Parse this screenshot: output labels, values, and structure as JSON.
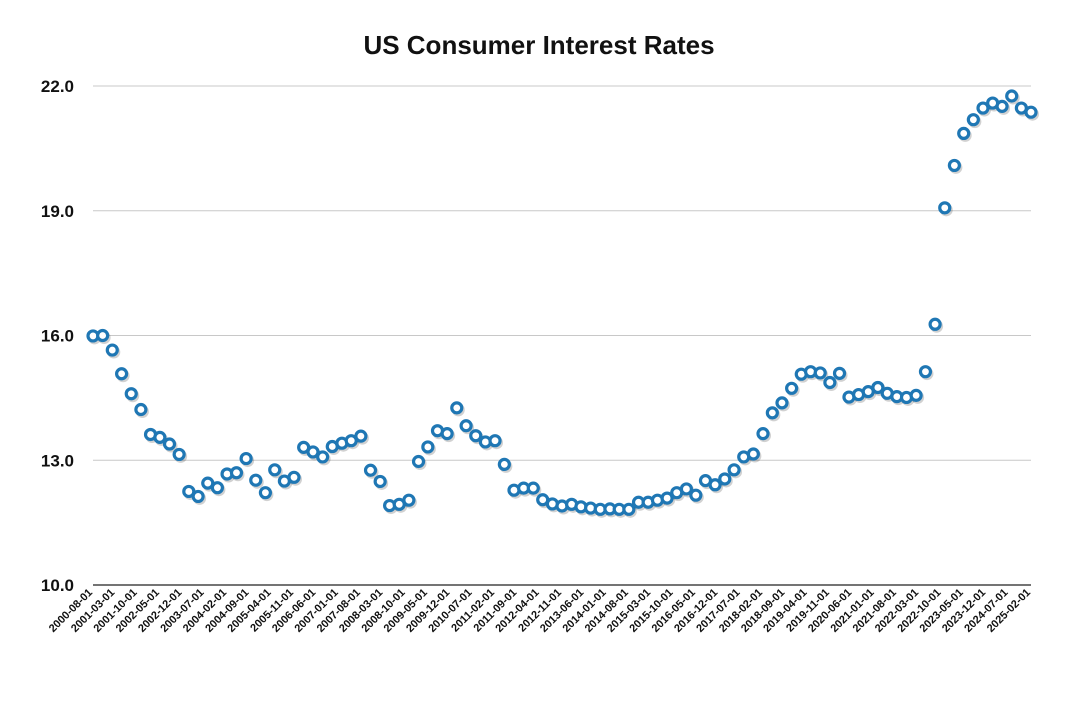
{
  "chart_data": {
    "type": "scatter",
    "title": "US Consumer Interest Rates",
    "xlabel": "",
    "ylabel": "",
    "ylim": [
      10.0,
      22.0
    ],
    "yticks": [
      "10.0",
      "13.0",
      "16.0",
      "19.0",
      "22.0"
    ],
    "grid": true,
    "marker_color": "#1f77b4",
    "x": [
      "2000-08-01",
      "2000-11-01",
      "2001-02-01",
      "2001-05-01",
      "2001-08-01",
      "2001-11-01",
      "2002-02-01",
      "2002-05-01",
      "2002-08-01",
      "2002-11-01",
      "2003-02-01",
      "2003-05-01",
      "2003-08-01",
      "2003-11-01",
      "2004-02-01",
      "2004-05-01",
      "2004-08-01",
      "2004-11-01",
      "2005-02-01",
      "2005-05-01",
      "2005-08-01",
      "2005-11-01",
      "2006-02-01",
      "2006-05-01",
      "2006-08-01",
      "2006-11-01",
      "2007-02-01",
      "2007-05-01",
      "2007-08-01",
      "2007-11-01",
      "2008-02-01",
      "2008-05-01",
      "2008-08-01",
      "2008-11-01",
      "2009-02-01",
      "2009-05-01",
      "2009-08-01",
      "2009-11-01",
      "2010-02-01",
      "2010-05-01",
      "2010-08-01",
      "2010-11-01",
      "2011-02-01",
      "2011-05-01",
      "2011-08-01",
      "2011-11-01",
      "2012-02-01",
      "2012-05-01",
      "2012-08-01",
      "2012-11-01",
      "2013-02-01",
      "2013-05-01",
      "2013-08-01",
      "2013-11-01",
      "2014-02-01",
      "2014-05-01",
      "2014-08-01",
      "2014-11-01",
      "2015-02-01",
      "2015-05-01",
      "2015-08-01",
      "2015-11-01",
      "2016-02-01",
      "2016-05-01",
      "2016-08-01",
      "2016-11-01",
      "2017-02-01",
      "2017-05-01",
      "2017-08-01",
      "2017-11-01",
      "2018-02-01",
      "2018-05-01",
      "2018-08-01",
      "2018-11-01",
      "2019-02-01",
      "2019-05-01",
      "2019-08-01",
      "2019-11-01",
      "2020-02-01",
      "2020-05-01",
      "2020-08-01",
      "2020-11-01",
      "2021-02-01",
      "2021-05-01",
      "2021-08-01",
      "2021-11-01",
      "2022-02-01",
      "2022-05-01",
      "2022-08-01",
      "2022-11-01",
      "2023-02-01",
      "2023-05-01",
      "2023-08-01",
      "2023-11-01",
      "2024-02-01",
      "2024-05-01",
      "2024-08-01",
      "2024-11-01",
      "2025-02-01"
    ],
    "y": [
      15.99,
      16.0,
      15.65,
      15.08,
      14.6,
      14.22,
      13.62,
      13.55,
      13.39,
      13.14,
      12.25,
      12.13,
      12.45,
      12.34,
      12.67,
      12.7,
      13.04,
      12.52,
      12.22,
      12.77,
      12.5,
      12.59,
      13.31,
      13.2,
      13.08,
      13.33,
      13.41,
      13.47,
      13.58,
      12.76,
      12.49,
      11.91,
      11.94,
      12.04,
      12.97,
      13.32,
      13.71,
      13.64,
      14.26,
      13.83,
      13.59,
      13.44,
      13.47,
      12.9,
      12.28,
      12.33,
      12.33,
      12.05,
      11.95,
      11.9,
      11.94,
      11.88,
      11.85,
      11.82,
      11.83,
      11.82,
      11.82,
      11.99,
      11.99,
      12.04,
      12.09,
      12.22,
      12.31,
      12.16,
      12.51,
      12.41,
      12.55,
      12.77,
      13.08,
      13.15,
      13.64,
      14.14,
      14.38,
      14.73,
      15.07,
      15.13,
      15.1,
      14.87,
      15.09,
      14.52,
      14.58,
      14.65,
      14.75,
      14.61,
      14.53,
      14.51,
      14.56,
      15.13,
      16.27,
      19.07,
      20.09,
      20.86,
      21.19,
      21.47,
      21.59,
      21.51,
      21.76,
      21.47,
      21.37
    ],
    "xtick_labels": [
      "2000-08-01",
      "2001-03-01",
      "2001-10-01",
      "2002-05-01",
      "2002-12-01",
      "2003-07-01",
      "2004-02-01",
      "2004-09-01",
      "2005-04-01",
      "2005-11-01",
      "2006-06-01",
      "2007-01-01",
      "2007-08-01",
      "2008-03-01",
      "2008-10-01",
      "2009-05-01",
      "2009-12-01",
      "2010-07-01",
      "2011-02-01",
      "2011-09-01",
      "2012-04-01",
      "2012-11-01",
      "2013-06-01",
      "2014-01-01",
      "2014-08-01",
      "2015-03-01",
      "2015-10-01",
      "2016-05-01",
      "2016-12-01",
      "2017-07-01",
      "2018-02-01",
      "2018-09-01",
      "2019-04-01",
      "2019-11-01",
      "2020-06-01",
      "2021-01-01",
      "2021-08-01",
      "2022-03-01",
      "2022-10-01",
      "2023-05-01",
      "2023-12-01",
      "2024-07-01",
      "2025-02-01"
    ]
  }
}
